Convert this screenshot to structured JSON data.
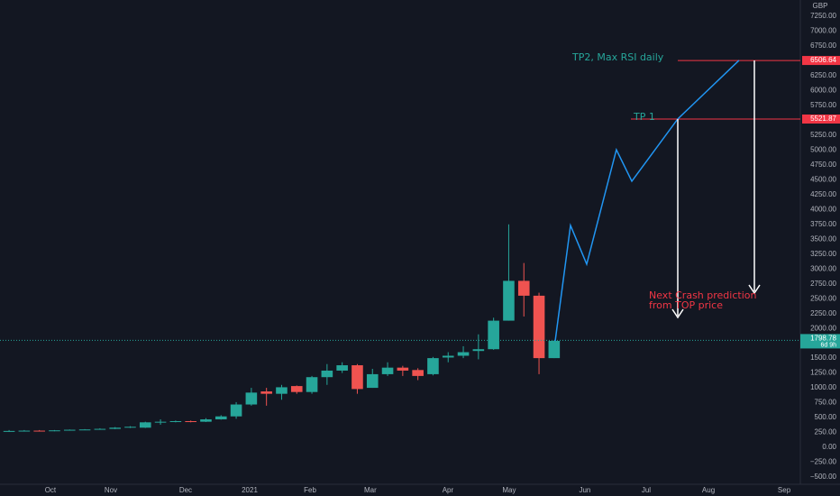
{
  "chart_data": {
    "type": "candlestick",
    "currency": "GBP",
    "up_color": "#26a69a",
    "down_color": "#ef5350",
    "x": [
      0.6,
      1.6,
      2.6,
      3.6,
      4.6,
      5.6,
      6.6,
      7.6,
      8.6,
      9.6,
      10.6,
      11.6,
      12.6,
      13.6,
      14.6,
      15.6,
      16.6,
      17.6,
      18.6,
      19.6,
      20.6,
      21.6,
      22.6,
      23.6,
      24.6,
      25.6,
      26.6,
      27.6,
      28.6,
      29.6,
      30.6,
      31.6,
      32.6,
      33.6,
      34.6,
      35.6,
      36.6
    ],
    "open": [
      270,
      275,
      280,
      275,
      285,
      295,
      300,
      310,
      330,
      330,
      420,
      430,
      440,
      430,
      470,
      520,
      720,
      940,
      900,
      1030,
      930,
      1180,
      1290,
      1380,
      1000,
      1230,
      1340,
      1300,
      1230,
      1510,
      1540,
      1620,
      1650,
      2130,
      2800,
      2550,
      1500
    ],
    "high": [
      290,
      290,
      290,
      290,
      300,
      305,
      320,
      340,
      355,
      430,
      470,
      450,
      450,
      490,
      540,
      760,
      1000,
      1000,
      1050,
      1040,
      1200,
      1400,
      1430,
      1400,
      1320,
      1430,
      1370,
      1330,
      1520,
      1600,
      1700,
      1900,
      2180,
      3750,
      3100,
      2600,
      1800
    ],
    "low": [
      260,
      265,
      265,
      270,
      280,
      290,
      295,
      305,
      325,
      325,
      380,
      420,
      420,
      425,
      465,
      480,
      700,
      700,
      800,
      900,
      900,
      1050,
      1250,
      900,
      1000,
      1200,
      1200,
      1130,
      1210,
      1430,
      1500,
      1480,
      1640,
      2130,
      2200,
      1230,
      1500
    ],
    "close": [
      275,
      280,
      275,
      285,
      295,
      300,
      310,
      330,
      345,
      420,
      430,
      440,
      430,
      470,
      520,
      720,
      920,
      900,
      1010,
      930,
      1180,
      1290,
      1380,
      980,
      1230,
      1340,
      1290,
      1200,
      1500,
      1540,
      1600,
      1650,
      2130,
      2800,
      2550,
      1500,
      1790
    ],
    "projection": {
      "color": "#2196f3",
      "x": [
        36.67,
        37.68,
        38.75,
        40.71,
        41.73,
        44.76,
        48.81
      ],
      "values": [
        1790,
        3732,
        3080,
        5006,
        4475,
        5522,
        6508
      ]
    },
    "levels": [
      {
        "value": 6506.64,
        "color": "#f23645"
      },
      {
        "value": 5521.87,
        "color": "#f23645"
      }
    ],
    "last_price": {
      "value": 1798.78,
      "countdown": "6d 9h",
      "color": "#26a69a"
    },
    "annotations": {
      "tp2": "TP2, Max RSI daily",
      "tp1": "TP 1",
      "crash_line1": "Next Crash prediction",
      "crash_line2": "from TOP price"
    },
    "xlim": [
      0,
      52.86
    ],
    "xticks": [
      {
        "value": 3.33,
        "label": "Oct"
      },
      {
        "value": 7.32,
        "label": "Nov"
      },
      {
        "value": 12.26,
        "label": "Dec"
      },
      {
        "value": 16.49,
        "label": "2021"
      },
      {
        "value": 20.48,
        "label": "Feb"
      },
      {
        "value": 24.46,
        "label": "Mar"
      },
      {
        "value": 29.58,
        "label": "Apr"
      },
      {
        "value": 33.63,
        "label": "May"
      },
      {
        "value": 38.63,
        "label": "Jun"
      },
      {
        "value": 42.68,
        "label": "Jul"
      },
      {
        "value": 46.79,
        "label": "Aug"
      },
      {
        "value": 51.79,
        "label": "Sep"
      }
    ],
    "ylim": [
      -622,
      7524
    ],
    "yticks": [
      {
        "value": -500,
        "label": "−500.00"
      },
      {
        "value": -250,
        "label": "−250.00"
      },
      {
        "value": 0,
        "label": "0.00"
      },
      {
        "value": 250,
        "label": "250.00"
      },
      {
        "value": 500,
        "label": "500.00"
      },
      {
        "value": 750,
        "label": "750.00"
      },
      {
        "value": 1000,
        "label": "1000.00"
      },
      {
        "value": 1250,
        "label": "1250.00"
      },
      {
        "value": 1500,
        "label": "1500.00"
      },
      {
        "value": 1750,
        "label": "1750.00"
      },
      {
        "value": 2000,
        "label": "2000.00"
      },
      {
        "value": 2250,
        "label": "2250.00"
      },
      {
        "value": 2500,
        "label": "2500.00"
      },
      {
        "value": 2750,
        "label": "2750.00"
      },
      {
        "value": 3000,
        "label": "3000.00"
      },
      {
        "value": 3250,
        "label": "3250.00"
      },
      {
        "value": 3500,
        "label": "3500.00"
      },
      {
        "value": 3750,
        "label": "3750.00"
      },
      {
        "value": 4000,
        "label": "4000.00"
      },
      {
        "value": 4250,
        "label": "4250.00"
      },
      {
        "value": 4500,
        "label": "4500.00"
      },
      {
        "value": 4750,
        "label": "4750.00"
      },
      {
        "value": 5000,
        "label": "5000.00"
      },
      {
        "value": 5250,
        "label": "5250.00"
      },
      {
        "value": 5500,
        "label": "5500.00"
      },
      {
        "value": 5750,
        "label": "5750.00"
      },
      {
        "value": 6000,
        "label": "6000.00"
      },
      {
        "value": 6250,
        "label": "6250.00"
      },
      {
        "value": 6500,
        "label": "6500.00"
      },
      {
        "value": 6750,
        "label": "6750.00"
      },
      {
        "value": 7000,
        "label": "7000.00"
      },
      {
        "value": 7250,
        "label": "7250.00"
      }
    ],
    "grid": false
  }
}
